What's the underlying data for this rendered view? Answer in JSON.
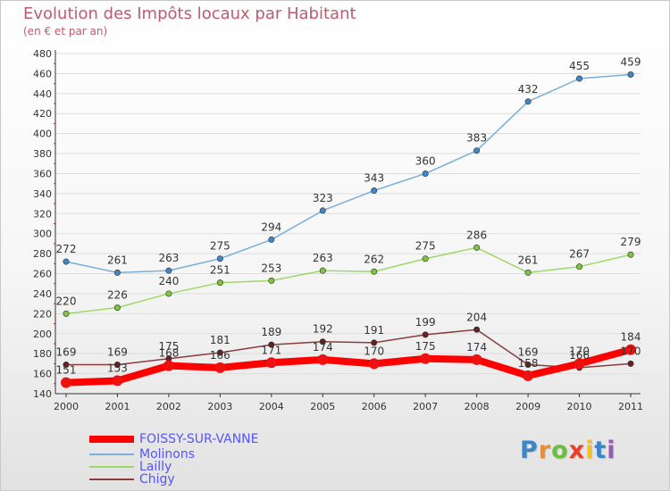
{
  "title": "Evolution des Impôts locaux par Habitant",
  "subtitle": "(en € et par an)",
  "logo": {
    "text": "Proxiti",
    "colors": [
      "#3a86c8",
      "#f28c28",
      "#6cbf3a",
      "#e8402a",
      "#f2c21b",
      "#3a86c8",
      "#9b59b6"
    ]
  },
  "chart_data": {
    "type": "line",
    "title": "Evolution des Impôts locaux par Habitant",
    "subtitle": "(en € et par an)",
    "xlabel": "",
    "ylabel": "",
    "x": [
      "2000",
      "2001",
      "2002",
      "2003",
      "2004",
      "2005",
      "2006",
      "2007",
      "2008",
      "2009",
      "2010",
      "2011"
    ],
    "ylim": [
      140,
      480
    ],
    "yticks": [
      140,
      160,
      180,
      200,
      220,
      240,
      260,
      280,
      300,
      320,
      340,
      360,
      380,
      400,
      420,
      440,
      460,
      480
    ],
    "grid": "horizontal",
    "legend_position": "bottom-left",
    "series": [
      {
        "name": "FOISSY-SUR-VANNE",
        "color": "#ff0000",
        "point_color": "#ee1111",
        "thick": true,
        "values": [
          151,
          153,
          168,
          166,
          171,
          174,
          170,
          175,
          174,
          158,
          170,
          184
        ],
        "labels": [
          "151",
          "153",
          "168",
          "166",
          "171",
          "174",
          "170",
          "175",
          "174",
          "158",
          "170",
          "184"
        ]
      },
      {
        "name": "Molinons",
        "color": "#7aaedb",
        "point_color": "#3e86c6",
        "thick": false,
        "values": [
          272,
          261,
          263,
          275,
          294,
          323,
          343,
          360,
          383,
          432,
          455,
          459
        ],
        "labels": [
          "272",
          "261",
          "263",
          "275",
          "294",
          "323",
          "343",
          "360",
          "383",
          "432",
          "455",
          "459"
        ]
      },
      {
        "name": "Lailly",
        "color": "#9fd86a",
        "point_color": "#7cc63d",
        "thick": false,
        "values": [
          220,
          226,
          240,
          251,
          253,
          263,
          262,
          275,
          286,
          261,
          267,
          279
        ],
        "labels": [
          "220",
          "226",
          "240",
          "251",
          "253",
          "263",
          "262",
          "275",
          "286",
          "261",
          "267",
          "279"
        ]
      },
      {
        "name": "Chigy",
        "color": "#8a3d3d",
        "point_color": "#6b2020",
        "thick": false,
        "values": [
          169,
          169,
          175,
          181,
          189,
          192,
          191,
          199,
          204,
          169,
          166,
          170
        ],
        "labels": [
          "169",
          "169",
          "175",
          "181",
          "189",
          "192",
          "191",
          "199",
          "204",
          "169",
          "166",
          "170"
        ]
      }
    ]
  }
}
